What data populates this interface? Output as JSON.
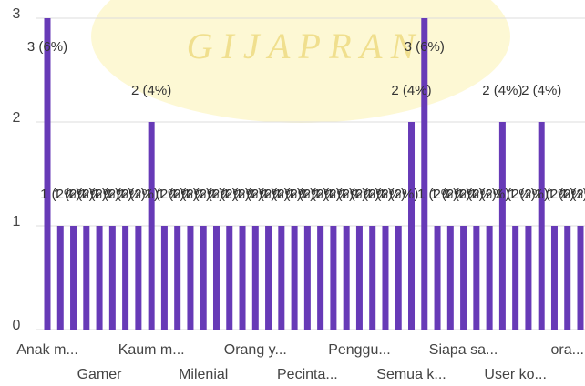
{
  "chart_data": {
    "type": "bar",
    "watermark": "G I J A P R A N",
    "categories": [
      "Anak m...",
      null,
      null,
      null,
      "Gamer",
      null,
      null,
      null,
      "Kaum m...",
      null,
      null,
      null,
      "Milenial",
      null,
      null,
      null,
      "Orang y...",
      null,
      null,
      null,
      "Pecinta...",
      null,
      null,
      null,
      "Penggu...",
      null,
      null,
      null,
      "Semua k...",
      null,
      null,
      null,
      "Siapa sa...",
      null,
      null,
      null,
      "User ko...",
      null,
      null,
      null,
      "ora...",
      null
    ],
    "values": [
      3,
      1,
      1,
      1,
      1,
      1,
      1,
      1,
      2,
      1,
      1,
      1,
      1,
      1,
      1,
      1,
      1,
      1,
      1,
      1,
      1,
      1,
      1,
      1,
      1,
      1,
      1,
      1,
      2,
      3,
      1,
      1,
      1,
      1,
      1,
      2,
      1,
      1,
      2,
      1,
      1,
      1
    ],
    "value_labels": [
      "3 (6%)",
      "1 (2%)",
      "1 (2%)",
      "1 (2%)",
      "1 (2%)",
      "1 (2%)",
      "1 (2%)",
      "1 (2%)",
      "2 (4%)",
      "1 (2%)",
      "1 (2%)",
      "1 (2%)",
      "1 (2%)",
      "1 (2%)",
      "1 (2%)",
      "1 (2%)",
      "1 (2%)",
      "1 (2%)",
      "1 (2%)",
      "1 (2%)",
      "1 (2%)",
      "1 (2%)",
      "1 (2%)",
      "1 (2%)",
      "1 (2%)",
      "1 (2%)",
      "1 (2%)",
      "1 (2%)",
      "2 (4%)",
      "3 (6%)",
      "1 (2%)",
      "1 (2%)",
      "1 (2%)",
      "1 (2%)",
      "1 (2%)",
      "2 (4%)",
      "1 (2%)",
      "1 (2%)",
      "2 (4%)",
      "1 (2%)",
      "1 (2%)",
      "1 (2%)"
    ],
    "color": "#673ab7",
    "ylim": [
      0,
      3
    ],
    "yticks": [
      0,
      1,
      2,
      3
    ],
    "grid": true
  }
}
